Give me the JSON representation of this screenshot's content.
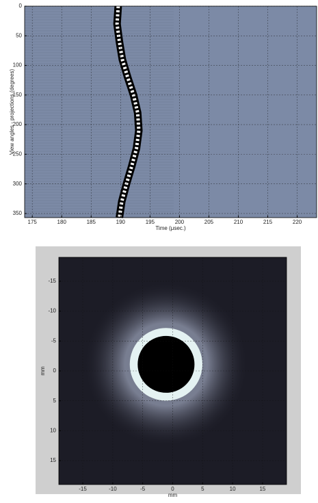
{
  "chart_data": [
    {
      "type": "sinogram",
      "xlabel": "Time (μsec.)",
      "ylabel": "View angles - projections (degrees)",
      "x": [
        189.6,
        189.4,
        189.8,
        190.3,
        191.2,
        192.2,
        192.9,
        193.1,
        192.7,
        191.9,
        191.0,
        190.2,
        189.8
      ],
      "values": [
        0,
        30,
        60,
        90,
        120,
        150,
        180,
        210,
        240,
        270,
        300,
        330,
        357
      ],
      "xlim": [
        173.7,
        223.3
      ],
      "ylim": [
        0,
        357
      ],
      "invert_y": true,
      "xticks": [
        175,
        180,
        185,
        190,
        195,
        200,
        205,
        210,
        215,
        220
      ],
      "yticks": [
        0,
        50,
        100,
        150,
        200,
        250,
        300,
        350
      ],
      "grid": true,
      "color": "#7c8aa6"
    },
    {
      "type": "image",
      "xlabel": "mm",
      "ylabel": "mm",
      "ring": {
        "cx": -1.1,
        "cy": -1.1,
        "r": 6.0
      },
      "xlim": [
        -19,
        19
      ],
      "ylim": [
        -19,
        19
      ],
      "invert_y": true,
      "xticks": [
        -15,
        -10,
        -5,
        0,
        5,
        10,
        15
      ],
      "yticks": [
        -15,
        -10,
        -5,
        0,
        5,
        10,
        15
      ],
      "grid": true,
      "color": "#1c1c26"
    }
  ]
}
